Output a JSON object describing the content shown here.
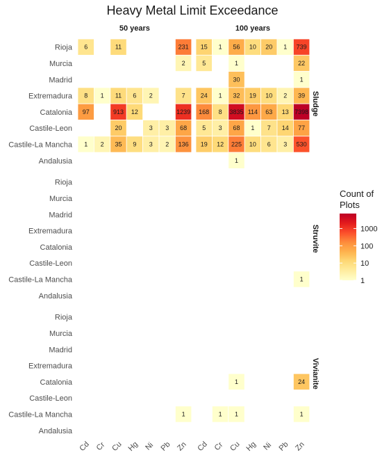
{
  "chart_data": {
    "type": "heatmap",
    "title": "Heavy Metal Limit Exceedance",
    "columns": [
      "50 years",
      "100 years"
    ],
    "rows": [
      "Sludge",
      "Struvite",
      "Vivianite"
    ],
    "metals": [
      "Cd",
      "Cr",
      "Cu",
      "Hg",
      "Ni",
      "Pb",
      "Zn"
    ],
    "regions": [
      "Rioja",
      "Murcia",
      "Madrid",
      "Extremadura",
      "Catalonia",
      "Castile-Leon",
      "Castile-La Mancha",
      "Andalusia"
    ],
    "legend": {
      "title_lines": [
        "Count of",
        "Plots"
      ],
      "scale": "log10",
      "limits": [
        1,
        7398
      ],
      "ticks": [
        1000,
        100,
        10,
        1
      ],
      "tick_labels": [
        "1000",
        "100",
        "10",
        "1"
      ],
      "colors": [
        "#ffffcc",
        "#ffeda0",
        "#fed976",
        "#feb24c",
        "#fd8d3c",
        "#fc4e2a",
        "#e31a1c",
        "#bd0026"
      ]
    },
    "cells": [
      {
        "row": "Sludge",
        "col": "50 years",
        "region": "Rioja",
        "metal": "Cd",
        "value": 6
      },
      {
        "row": "Sludge",
        "col": "50 years",
        "region": "Rioja",
        "metal": "Cu",
        "value": 11
      },
      {
        "row": "Sludge",
        "col": "50 years",
        "region": "Rioja",
        "metal": "Zn",
        "value": 231
      },
      {
        "row": "Sludge",
        "col": "50 years",
        "region": "Murcia",
        "metal": "Zn",
        "value": 2
      },
      {
        "row": "Sludge",
        "col": "50 years",
        "region": "Extremadura",
        "metal": "Cd",
        "value": 8
      },
      {
        "row": "Sludge",
        "col": "50 years",
        "region": "Extremadura",
        "metal": "Cr",
        "value": 1
      },
      {
        "row": "Sludge",
        "col": "50 years",
        "region": "Extremadura",
        "metal": "Cu",
        "value": 11
      },
      {
        "row": "Sludge",
        "col": "50 years",
        "region": "Extremadura",
        "metal": "Hg",
        "value": 6
      },
      {
        "row": "Sludge",
        "col": "50 years",
        "region": "Extremadura",
        "metal": "Ni",
        "value": 2
      },
      {
        "row": "Sludge",
        "col": "50 years",
        "region": "Extremadura",
        "metal": "Zn",
        "value": 7
      },
      {
        "row": "Sludge",
        "col": "50 years",
        "region": "Catalonia",
        "metal": "Cd",
        "value": 97
      },
      {
        "row": "Sludge",
        "col": "50 years",
        "region": "Catalonia",
        "metal": "Cu",
        "value": 913
      },
      {
        "row": "Sludge",
        "col": "50 years",
        "region": "Catalonia",
        "metal": "Hg",
        "value": 12
      },
      {
        "row": "Sludge",
        "col": "50 years",
        "region": "Catalonia",
        "metal": "Zn",
        "value": 1239
      },
      {
        "row": "Sludge",
        "col": "50 years",
        "region": "Castile-Leon",
        "metal": "Cu",
        "value": 20
      },
      {
        "row": "Sludge",
        "col": "50 years",
        "region": "Castile-Leon",
        "metal": "Ni",
        "value": 3
      },
      {
        "row": "Sludge",
        "col": "50 years",
        "region": "Castile-Leon",
        "metal": "Pb",
        "value": 3
      },
      {
        "row": "Sludge",
        "col": "50 years",
        "region": "Castile-Leon",
        "metal": "Zn",
        "value": 68
      },
      {
        "row": "Sludge",
        "col": "50 years",
        "region": "Castile-La Mancha",
        "metal": "Cd",
        "value": 1
      },
      {
        "row": "Sludge",
        "col": "50 years",
        "region": "Castile-La Mancha",
        "metal": "Cr",
        "value": 2
      },
      {
        "row": "Sludge",
        "col": "50 years",
        "region": "Castile-La Mancha",
        "metal": "Cu",
        "value": 35
      },
      {
        "row": "Sludge",
        "col": "50 years",
        "region": "Castile-La Mancha",
        "metal": "Hg",
        "value": 9
      },
      {
        "row": "Sludge",
        "col": "50 years",
        "region": "Castile-La Mancha",
        "metal": "Ni",
        "value": 3
      },
      {
        "row": "Sludge",
        "col": "50 years",
        "region": "Castile-La Mancha",
        "metal": "Pb",
        "value": 2
      },
      {
        "row": "Sludge",
        "col": "50 years",
        "region": "Castile-La Mancha",
        "metal": "Zn",
        "value": 136
      },
      {
        "row": "Sludge",
        "col": "100 years",
        "region": "Rioja",
        "metal": "Cd",
        "value": 15
      },
      {
        "row": "Sludge",
        "col": "100 years",
        "region": "Rioja",
        "metal": "Cr",
        "value": 1
      },
      {
        "row": "Sludge",
        "col": "100 years",
        "region": "Rioja",
        "metal": "Cu",
        "value": 56
      },
      {
        "row": "Sludge",
        "col": "100 years",
        "region": "Rioja",
        "metal": "Hg",
        "value": 10
      },
      {
        "row": "Sludge",
        "col": "100 years",
        "region": "Rioja",
        "metal": "Ni",
        "value": 20
      },
      {
        "row": "Sludge",
        "col": "100 years",
        "region": "Rioja",
        "metal": "Pb",
        "value": 1
      },
      {
        "row": "Sludge",
        "col": "100 years",
        "region": "Rioja",
        "metal": "Zn",
        "value": 739
      },
      {
        "row": "Sludge",
        "col": "100 years",
        "region": "Murcia",
        "metal": "Cd",
        "value": 5
      },
      {
        "row": "Sludge",
        "col": "100 years",
        "region": "Murcia",
        "metal": "Cu",
        "value": 1
      },
      {
        "row": "Sludge",
        "col": "100 years",
        "region": "Murcia",
        "metal": "Zn",
        "value": 22
      },
      {
        "row": "Sludge",
        "col": "100 years",
        "region": "Madrid",
        "metal": "Cu",
        "value": 30
      },
      {
        "row": "Sludge",
        "col": "100 years",
        "region": "Madrid",
        "metal": "Zn",
        "value": 1
      },
      {
        "row": "Sludge",
        "col": "100 years",
        "region": "Extremadura",
        "metal": "Cd",
        "value": 24
      },
      {
        "row": "Sludge",
        "col": "100 years",
        "region": "Extremadura",
        "metal": "Cr",
        "value": 1
      },
      {
        "row": "Sludge",
        "col": "100 years",
        "region": "Extremadura",
        "metal": "Cu",
        "value": 32
      },
      {
        "row": "Sludge",
        "col": "100 years",
        "region": "Extremadura",
        "metal": "Hg",
        "value": 19
      },
      {
        "row": "Sludge",
        "col": "100 years",
        "region": "Extremadura",
        "metal": "Ni",
        "value": 10
      },
      {
        "row": "Sludge",
        "col": "100 years",
        "region": "Extremadura",
        "metal": "Pb",
        "value": 2
      },
      {
        "row": "Sludge",
        "col": "100 years",
        "region": "Extremadura",
        "metal": "Zn",
        "value": 39
      },
      {
        "row": "Sludge",
        "col": "100 years",
        "region": "Catalonia",
        "metal": "Cd",
        "value": 168
      },
      {
        "row": "Sludge",
        "col": "100 years",
        "region": "Catalonia",
        "metal": "Cr",
        "value": 8
      },
      {
        "row": "Sludge",
        "col": "100 years",
        "region": "Catalonia",
        "metal": "Cu",
        "value": 3835
      },
      {
        "row": "Sludge",
        "col": "100 years",
        "region": "Catalonia",
        "metal": "Hg",
        "value": 114
      },
      {
        "row": "Sludge",
        "col": "100 years",
        "region": "Catalonia",
        "metal": "Ni",
        "value": 63
      },
      {
        "row": "Sludge",
        "col": "100 years",
        "region": "Catalonia",
        "metal": "Pb",
        "value": 13
      },
      {
        "row": "Sludge",
        "col": "100 years",
        "region": "Catalonia",
        "metal": "Zn",
        "value": 7398
      },
      {
        "row": "Sludge",
        "col": "100 years",
        "region": "Castile-Leon",
        "metal": "Cd",
        "value": 5
      },
      {
        "row": "Sludge",
        "col": "100 years",
        "region": "Castile-Leon",
        "metal": "Cr",
        "value": 3
      },
      {
        "row": "Sludge",
        "col": "100 years",
        "region": "Castile-Leon",
        "metal": "Cu",
        "value": 68
      },
      {
        "row": "Sludge",
        "col": "100 years",
        "region": "Castile-Leon",
        "metal": "Hg",
        "value": 1
      },
      {
        "row": "Sludge",
        "col": "100 years",
        "region": "Castile-Leon",
        "metal": "Ni",
        "value": 7
      },
      {
        "row": "Sludge",
        "col": "100 years",
        "region": "Castile-Leon",
        "metal": "Pb",
        "value": 14
      },
      {
        "row": "Sludge",
        "col": "100 years",
        "region": "Castile-Leon",
        "metal": "Zn",
        "value": 77
      },
      {
        "row": "Sludge",
        "col": "100 years",
        "region": "Castile-La Mancha",
        "metal": "Cd",
        "value": 19
      },
      {
        "row": "Sludge",
        "col": "100 years",
        "region": "Castile-La Mancha",
        "metal": "Cr",
        "value": 12
      },
      {
        "row": "Sludge",
        "col": "100 years",
        "region": "Castile-La Mancha",
        "metal": "Cu",
        "value": 225
      },
      {
        "row": "Sludge",
        "col": "100 years",
        "region": "Castile-La Mancha",
        "metal": "Hg",
        "value": 10
      },
      {
        "row": "Sludge",
        "col": "100 years",
        "region": "Castile-La Mancha",
        "metal": "Ni",
        "value": 6
      },
      {
        "row": "Sludge",
        "col": "100 years",
        "region": "Castile-La Mancha",
        "metal": "Pb",
        "value": 3
      },
      {
        "row": "Sludge",
        "col": "100 years",
        "region": "Castile-La Mancha",
        "metal": "Zn",
        "value": 530
      },
      {
        "row": "Sludge",
        "col": "100 years",
        "region": "Andalusia",
        "metal": "Cu",
        "value": 1
      },
      {
        "row": "Struvite",
        "col": "100 years",
        "region": "Castile-La Mancha",
        "metal": "Zn",
        "value": 1
      },
      {
        "row": "Vivianite",
        "col": "100 years",
        "region": "Catalonia",
        "metal": "Cu",
        "value": 1
      },
      {
        "row": "Vivianite",
        "col": "100 years",
        "region": "Catalonia",
        "metal": "Zn",
        "value": 24
      },
      {
        "row": "Vivianite",
        "col": "50 years",
        "region": "Castile-La Mancha",
        "metal": "Zn",
        "value": 1
      },
      {
        "row": "Vivianite",
        "col": "100 years",
        "region": "Castile-La Mancha",
        "metal": "Cr",
        "value": 1
      },
      {
        "row": "Vivianite",
        "col": "100 years",
        "region": "Castile-La Mancha",
        "metal": "Cu",
        "value": 1
      },
      {
        "row": "Vivianite",
        "col": "100 years",
        "region": "Castile-La Mancha",
        "metal": "Zn",
        "value": 1
      }
    ]
  }
}
